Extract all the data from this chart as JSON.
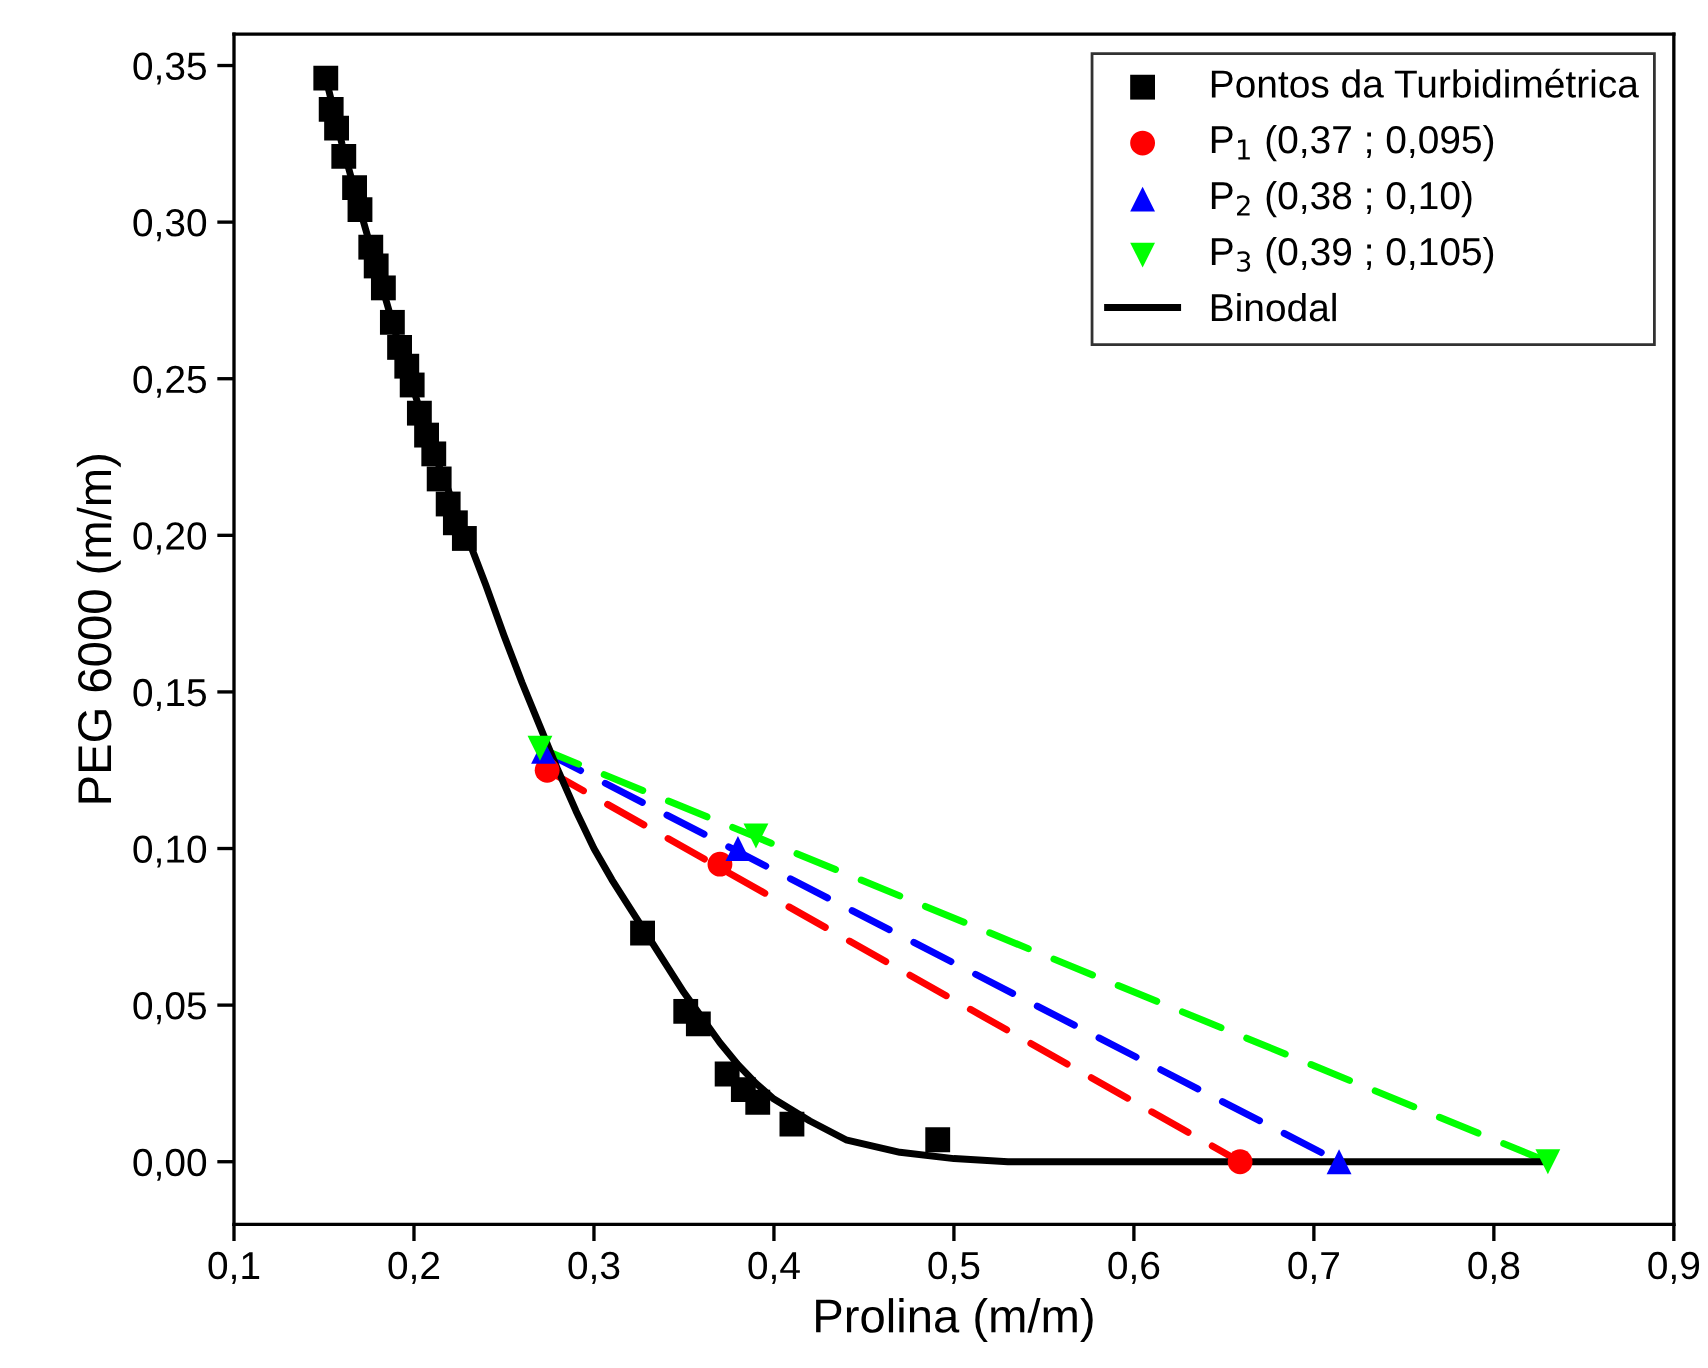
{
  "chart_data": {
    "type": "scatter",
    "xlabel": "Prolina (m/m)",
    "ylabel": "PEG 6000 (m/m)",
    "xlim": [
      0.1,
      0.9
    ],
    "ylim": [
      -0.02,
      0.36
    ],
    "xticks": [
      {
        "value": 0.1,
        "label": "0,1"
      },
      {
        "value": 0.2,
        "label": "0,2"
      },
      {
        "value": 0.3,
        "label": "0,3"
      },
      {
        "value": 0.4,
        "label": "0,4"
      },
      {
        "value": 0.5,
        "label": "0,5"
      },
      {
        "value": 0.6,
        "label": "0,6"
      },
      {
        "value": 0.7,
        "label": "0,7"
      },
      {
        "value": 0.8,
        "label": "0,8"
      },
      {
        "value": 0.9,
        "label": "0,9"
      }
    ],
    "yticks": [
      {
        "value": 0.0,
        "label": "0,00"
      },
      {
        "value": 0.05,
        "label": "0,05"
      },
      {
        "value": 0.1,
        "label": "0,10"
      },
      {
        "value": 0.15,
        "label": "0,15"
      },
      {
        "value": 0.2,
        "label": "0,20"
      },
      {
        "value": 0.25,
        "label": "0,25"
      },
      {
        "value": 0.3,
        "label": "0,30"
      },
      {
        "value": 0.35,
        "label": "0,35"
      }
    ],
    "grid": false,
    "legend": "top right",
    "series": [
      {
        "type": "line",
        "color": "#ff0000",
        "line_style": "dashed",
        "marker": "none",
        "x": [
          0.274,
          0.659
        ],
        "values": [
          0.125,
          0.0
        ]
      },
      {
        "type": "line",
        "color": "#0000ff",
        "line_style": "dashed",
        "marker": "none",
        "x": [
          0.272,
          0.714
        ],
        "values": [
          0.131,
          0.0
        ]
      },
      {
        "type": "line",
        "color": "#00ff00",
        "line_style": "dashed",
        "marker": "none",
        "x": [
          0.27,
          0.83
        ],
        "values": [
          0.132,
          0.0
        ]
      },
      {
        "type": "line",
        "name": "Binodal",
        "color": "#000000",
        "line_style": "solid",
        "marker": "none",
        "x": [
          0.151,
          0.16,
          0.17,
          0.18,
          0.19,
          0.2,
          0.21,
          0.22,
          0.23,
          0.24,
          0.25,
          0.26,
          0.27,
          0.28,
          0.29,
          0.3,
          0.31,
          0.32,
          0.33,
          0.34,
          0.35,
          0.36,
          0.37,
          0.38,
          0.39,
          0.4,
          0.42,
          0.44,
          0.47,
          0.5,
          0.53,
          0.83
        ],
        "values": [
          0.346,
          0.325,
          0.304,
          0.284,
          0.264,
          0.246,
          0.228,
          0.213,
          0.199,
          0.184,
          0.168,
          0.153,
          0.139,
          0.125,
          0.112,
          0.1,
          0.09,
          0.081,
          0.072,
          0.063,
          0.054,
          0.046,
          0.038,
          0.031,
          0.025,
          0.02,
          0.013,
          0.007,
          0.003,
          0.001,
          0.0,
          0.0
        ]
      },
      {
        "name": "Pontos da Turbidimétrica",
        "color": "#000000",
        "marker": "square",
        "x": [
          0.151,
          0.154,
          0.157,
          0.161,
          0.167,
          0.17,
          0.176,
          0.179,
          0.183,
          0.188,
          0.192,
          0.196,
          0.199,
          0.203,
          0.207,
          0.211,
          0.214,
          0.219,
          0.223,
          0.228,
          0.327,
          0.351,
          0.358,
          0.374,
          0.383,
          0.391,
          0.41,
          0.491
        ],
        "values": [
          0.346,
          0.336,
          0.33,
          0.321,
          0.311,
          0.304,
          0.292,
          0.286,
          0.279,
          0.268,
          0.26,
          0.254,
          0.248,
          0.239,
          0.232,
          0.226,
          0.218,
          0.21,
          0.204,
          0.199,
          0.073,
          0.048,
          0.044,
          0.028,
          0.023,
          0.019,
          0.012,
          0.007
        ]
      },
      {
        "name": "P$_{1}$ (0,37 ; 0,095)",
        "color": "#ff0000",
        "marker": "circle",
        "x": [
          0.274,
          0.37,
          0.659
        ],
        "values": [
          0.125,
          0.095,
          0.0
        ]
      },
      {
        "name": "P$_{2}$ (0,38 ; 0,10)",
        "color": "#0000ff",
        "marker": "triangle",
        "x": [
          0.272,
          0.38,
          0.714
        ],
        "values": [
          0.131,
          0.1,
          0.0
        ]
      },
      {
        "name": "P$_{3}$ (0,39 ; 0,105)",
        "color": "#00ff00",
        "marker": "triangle_down",
        "x": [
          0.27,
          0.39,
          0.83
        ],
        "values": [
          0.132,
          0.104,
          0.0
        ]
      }
    ]
  }
}
